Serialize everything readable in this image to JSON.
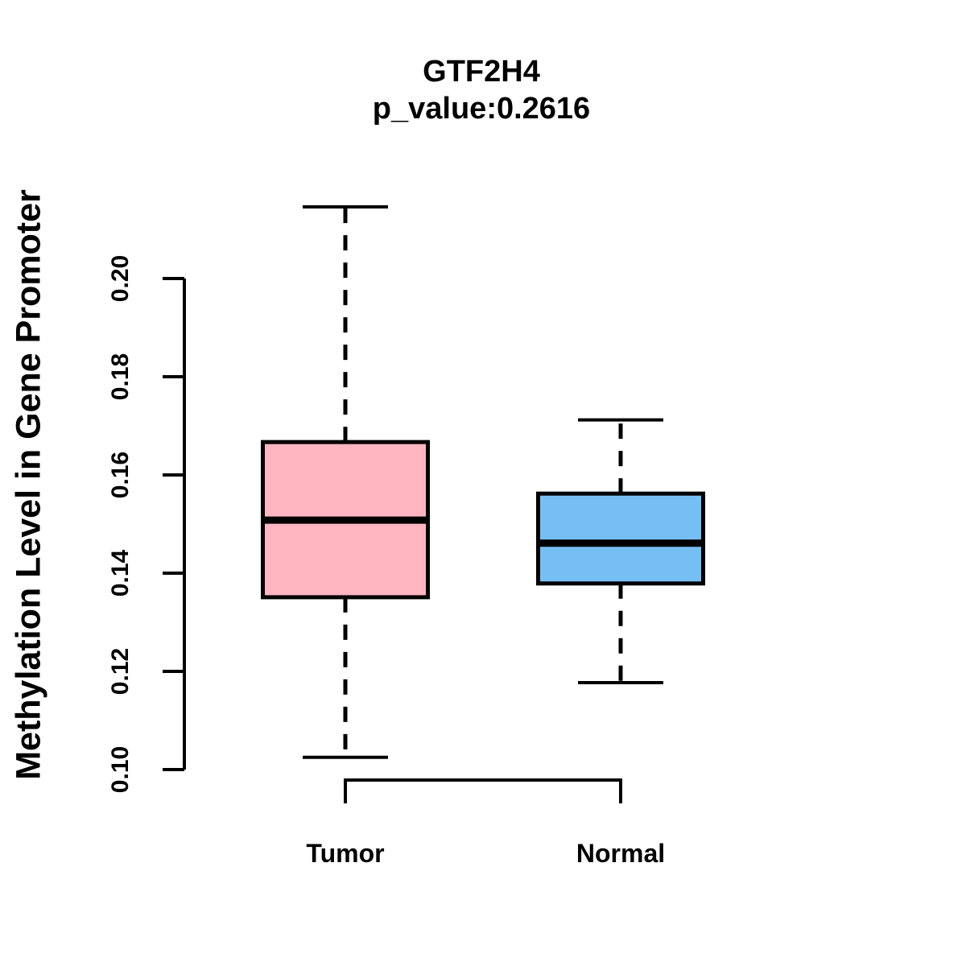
{
  "chart_data": {
    "type": "boxplot",
    "title": "GTF2H4",
    "subtitle": "p_value:0.2616",
    "ylabel": "Methylation Level in Gene Promoter",
    "xlabel": "",
    "categories": [
      "Tumor",
      "Normal"
    ],
    "ylim": [
      0.1,
      0.2
    ],
    "yticks": [
      0.1,
      0.12,
      0.14,
      0.16,
      0.18,
      0.2
    ],
    "ytick_labels": [
      "0.10",
      "0.12",
      "0.14",
      "0.16",
      "0.18",
      "0.20"
    ],
    "grid": false,
    "legend": "none",
    "series": [
      {
        "name": "Tumor",
        "fill_color": "#FFB6C1",
        "border_color": "#000000",
        "whisker_low": 0.1025,
        "q1": 0.1351,
        "median": 0.1508,
        "q3": 0.1667,
        "whisker_high": 0.2146
      },
      {
        "name": "Normal",
        "fill_color": "#76BFF5",
        "border_color": "#000000",
        "whisker_low": 0.1177,
        "q1": 0.1379,
        "median": 0.1461,
        "q3": 0.1562,
        "whisker_high": 0.1712
      }
    ]
  }
}
